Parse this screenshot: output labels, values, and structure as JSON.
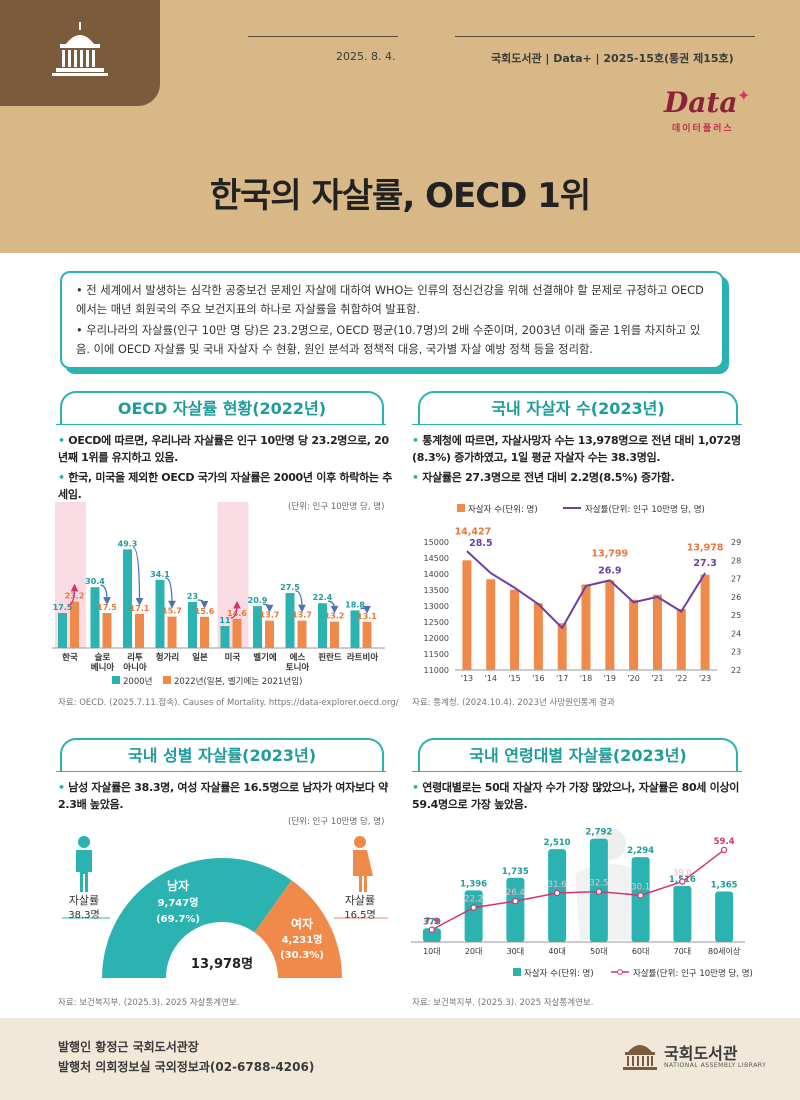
{
  "header": {
    "date": "2025. 8. 4.",
    "publication": "국회도서관 | Data+ | 2025-15호(통권 제15호)",
    "brand": "Data",
    "brand_sub": "데이터플러스",
    "title": "한국의 자살률, OECD 1위"
  },
  "summary": {
    "items": [
      "전 세계에서 발생하는 심각한 공중보건 문제인 자살에 대하여 WHO는 인류의 정신건강을 위해 선결해야 할 문제로 규정하고 OECD에서는 매년 회원국의 주요 보건지표의 하나로 자살률을 취합하여 발표함.",
      "우리나라의 자살률(인구 10만 명 당)은 23.2명으로, OECD 평균(10.7명)의 2배 수준이며, 2003년 이래 줄곧 1위를 차지하고 있음. 이에 OECD 자살률 및 국내 자살자 수 현황, 원인 분석과 정책적 대응, 국가별 자살 예방 정책 등을 정리함."
    ]
  },
  "panels": {
    "oecd": {
      "title": "OECD 자살률 현황(2022년)",
      "bullets": [
        "OECD에 따르면, 우리나라 자살률은 인구 10만명 당 23.2명으로, 20년째 1위를 유지하고 있음.",
        "한국, 미국을 제외한 OECD 국가의 자살률은 2000년 이후 하락하는 추세임."
      ],
      "unit": "(단위: 인구 10만명 당, 명)",
      "source": "자료: OECD. (2025.7.11.접속). Causes of Mortality. https://data-explorer.oecd.org/"
    },
    "domestic": {
      "title": "국내 자살자 수(2023년)",
      "bullets": [
        "통계청에 따르면, 자살사망자 수는 13,978명으로 전년 대비 1,072명 (8.3%) 증가하였고, 1일 평균 자살자 수는 38.3명임.",
        "자살률은 27.3명으로 전년 대비 2.2명(8.5%) 증가함."
      ],
      "source": "자료: 통계청. (2024.10.4). 2023년 사망원인통계 결과"
    },
    "gender": {
      "title": "국내 성별 자살률(2023년)",
      "bullets": [
        "남성 자살률은 38.3명, 여성 자살률은 16.5명으로 남자가 여자보다 약 2.3배 높았음."
      ],
      "unit": "(단위: 인구 10만명 당, 명)",
      "source": "자료: 보건복지부. (2025.3). 2025 자살통계연보."
    },
    "age": {
      "title": "국내 연령대별 자살률(2023년)",
      "bullets": [
        "연령대별로는 50대 자살자 수가 가장 많았으나, 자살률은 80세 이상이 59.4명으로 가장 높았음."
      ],
      "source": "자료: 보건복지부. (2025.3). 2025 자살통계연보."
    }
  },
  "footer": {
    "publisher": "발행인 황정근 국회도서관장",
    "office": "발행처 의회정보실 국외정보과(02-6788-4206)",
    "org": "국회도서관",
    "org_en": "NATIONAL ASSEMBLY LIBRARY"
  },
  "colors": {
    "teal": "#2bb3b1",
    "orange": "#f08a4b",
    "purple": "#6e3fa3",
    "crimson": "#d6336c",
    "highlight": "#f9dbe3"
  },
  "chart_data": [
    {
      "type": "bar",
      "categories": [
        "한국",
        "슬로베니아",
        "리투아니아",
        "헝가리",
        "일본",
        "미국",
        "벨기에",
        "에스토니아",
        "핀란드",
        "라트비아"
      ],
      "series": [
        {
          "name": "2000년",
          "values": [
            17.5,
            30.4,
            49.3,
            34.1,
            23,
            11,
            20.9,
            27.5,
            22.4,
            18.8
          ]
        },
        {
          "name": "2022년(일본, 벨기에는 2021년임)",
          "values": [
            23.2,
            17.5,
            17.1,
            15.7,
            15.6,
            14.6,
            13.7,
            13.7,
            13.2,
            13.1
          ]
        }
      ],
      "category_labels": [
        [
          "한국"
        ],
        [
          "슬로",
          "베니아"
        ],
        [
          "리투",
          "아니아"
        ],
        [
          "헝가리"
        ],
        [
          "일본"
        ],
        [
          "미국"
        ],
        [
          "벨기에"
        ],
        [
          "에스",
          "토니아"
        ],
        [
          "핀란드"
        ],
        [
          "라트비아"
        ]
      ],
      "highlighted": [
        "한국",
        "미국"
      ],
      "legend": "bottom"
    },
    {
      "type": "bar",
      "categories": [
        "'13",
        "'14",
        "'15",
        "'16",
        "'17",
        "'18",
        "'19",
        "'20",
        "'21",
        "'22",
        "'23"
      ],
      "series": [
        {
          "name": "자살자 수(단위: 명)",
          "values": [
            14427,
            13836,
            13513,
            13092,
            12463,
            13670,
            13799,
            13195,
            13352,
            12906,
            13978
          ]
        },
        {
          "name": "자살률(단위: 인구 10만명 당, 명)",
          "type": "line",
          "values": [
            28.5,
            27.3,
            26.5,
            25.6,
            24.3,
            26.6,
            26.9,
            25.7,
            26.0,
            25.2,
            27.3
          ]
        }
      ],
      "labeled_points": {
        "count": {
          "'13": "14,427",
          "'19": "13,799",
          "'23": "13,978"
        },
        "rate": {
          "'13": "28.5",
          "'19": "26.9",
          "'23": "27.3"
        }
      },
      "y_left": {
        "min": 11000,
        "max": 15000,
        "ticks": [
          "15000",
          "14500",
          "14000",
          "13500",
          "13000",
          "12500",
          "12000",
          "11500",
          "11000"
        ]
      },
      "y_right": {
        "min": 22,
        "max": 29,
        "ticks": [
          "29",
          "28",
          "27",
          "26",
          "25",
          "24",
          "23",
          "22"
        ]
      },
      "legend": "top"
    },
    {
      "type": "pie",
      "labels": [
        "남자",
        "여자"
      ],
      "counts": [
        "9,747",
        "4,231"
      ],
      "count_unit": "명",
      "percents": [
        "(69.7%)",
        "(30.3%)"
      ],
      "shares": [
        69.7,
        30.3
      ],
      "total": "13,978",
      "total_unit": "명",
      "rate_label": "자살률",
      "rates": {
        "male": "38.3",
        "female": "16.5"
      },
      "rate_unit": "명"
    },
    {
      "type": "bar",
      "categories": [
        "10대",
        "20대",
        "30대",
        "40대",
        "50대",
        "60대",
        "70대",
        "80세이상"
      ],
      "series": [
        {
          "name": "자살자 수(단위: 명)",
          "values": [
            370,
            1396,
            1735,
            2510,
            2792,
            2294,
            1516,
            1365
          ],
          "labels": [
            "370",
            "1,396",
            "1,735",
            "2,510",
            "2,792",
            "2,294",
            "1,516",
            "1,365"
          ]
        },
        {
          "name": "자살률(단위: 인구 10만명 당, 명)",
          "type": "line",
          "values": [
            7.9,
            22.2,
            26.4,
            31.6,
            32.5,
            30.1,
            39.0,
            59.4
          ],
          "labels": [
            "7.9",
            "22.2",
            "26.4",
            "31.6",
            "32.5",
            "30.1",
            "39.0",
            "59.4"
          ]
        }
      ],
      "legend": "bottom"
    }
  ]
}
